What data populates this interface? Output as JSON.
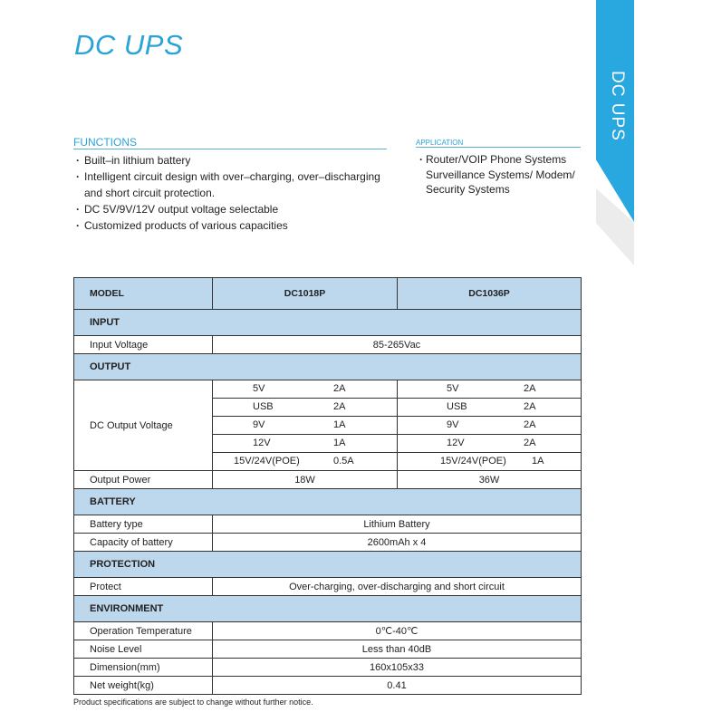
{
  "title": "DC UPS",
  "ribbon_label": "DC UPS",
  "colors": {
    "accent": "#29a8e0",
    "table_header": "#bdd7ed"
  },
  "functions": {
    "heading": "FUNCTIONS",
    "items": [
      "Built–in lithium battery",
      "Intelligent circuit design with over–charging, over–discharging and short circuit protection.",
      "DC 5V/9V/12V output voltage selectable",
      "Customized products of various capacities"
    ]
  },
  "application": {
    "heading": "APPLICATION",
    "items": [
      "Router/VOIP Phone Systems Surveillance Systems/ Modem/ Security Systems"
    ]
  },
  "table": {
    "model_label": "MODEL",
    "models": [
      "DC1018P",
      "DC1036P"
    ],
    "input": {
      "heading": "INPUT",
      "rows": [
        [
          "Input Voltage",
          "85-265Vac"
        ]
      ]
    },
    "output": {
      "heading": "OUTPUT",
      "dc_label": "DC Output Voltage",
      "dc_rows": [
        [
          "5V",
          "2A",
          "5V",
          "2A"
        ],
        [
          "USB",
          "2A",
          "USB",
          "2A"
        ],
        [
          "9V",
          "1A",
          "9V",
          "2A"
        ],
        [
          "12V",
          "1A",
          "12V",
          "2A"
        ],
        [
          "15V/24V(POE)",
          "0.5A",
          "15V/24V(POE)",
          "1A"
        ]
      ],
      "power_label": "Output Power",
      "power": [
        "18W",
        "36W"
      ]
    },
    "battery": {
      "heading": "BATTERY",
      "rows": [
        [
          "Battery type",
          "Lithium Battery"
        ],
        [
          "Capacity of battery",
          "2600mAh x 4"
        ]
      ]
    },
    "protection": {
      "heading": "PROTECTION",
      "rows": [
        [
          "Protect",
          "Over-charging, over-discharging and short circuit"
        ]
      ]
    },
    "environment": {
      "heading": "ENVIRONMENT",
      "rows": [
        [
          "Operation Temperature",
          "0℃-40℃"
        ],
        [
          "Noise Level",
          "Less than 40dB"
        ],
        [
          "Dimension(mm)",
          "160x105x33"
        ],
        [
          "Net weight(kg)",
          "0.41"
        ]
      ]
    }
  },
  "note": "Product specifications are subject to change without further notice."
}
